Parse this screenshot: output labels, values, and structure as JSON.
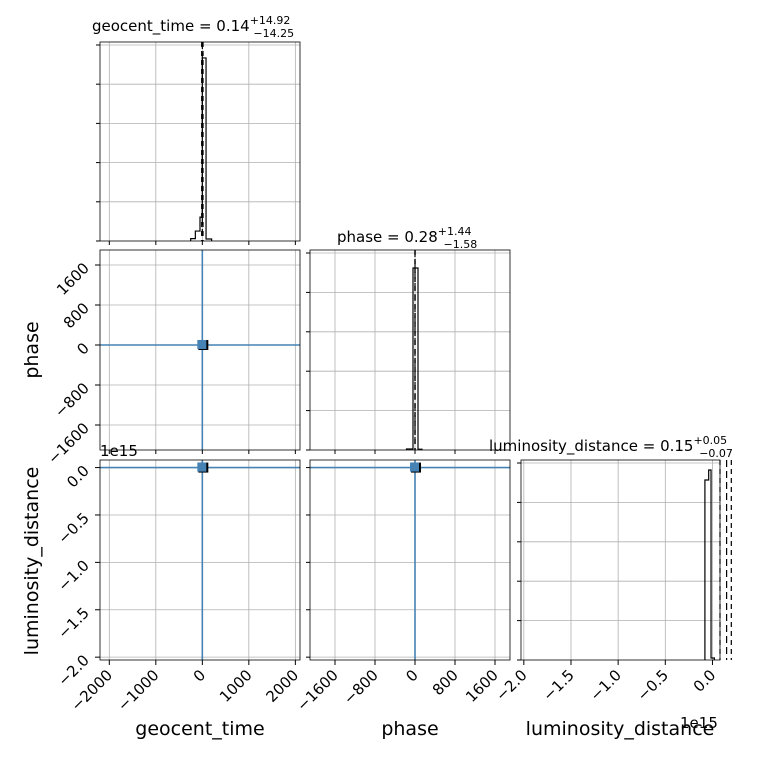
{
  "chart_data": {
    "type": "corner",
    "parameters": [
      "geocent_time",
      "phase",
      "luminosity_distance"
    ],
    "offset_labels": {
      "luminosity_distance_yaxis": "1e15",
      "luminosity_distance_xaxis": "1e15"
    },
    "ranges": {
      "geocent_time": [
        -2200,
        2100
      ],
      "phase": [
        -2100,
        1900
      ],
      "luminosity_distance": [
        -2.03,
        0.08
      ]
    },
    "ticks": {
      "geocent_time": [
        {
          "value": -2000,
          "label": "−2000"
        },
        {
          "value": -1000,
          "label": "−1000"
        },
        {
          "value": 0,
          "label": "0"
        },
        {
          "value": 1000,
          "label": "1000"
        },
        {
          "value": 2000,
          "label": "2000"
        }
      ],
      "phase": [
        {
          "value": -1600,
          "label": "−1600"
        },
        {
          "value": -800,
          "label": "−800"
        },
        {
          "value": 0,
          "label": "0"
        },
        {
          "value": 800,
          "label": "800"
        },
        {
          "value": 1600,
          "label": "1600"
        }
      ],
      "luminosity_distance_x": [
        {
          "value": -2.0,
          "label": "−2.0"
        },
        {
          "value": -1.5,
          "label": "−1.5"
        },
        {
          "value": -1.0,
          "label": "−1.0"
        },
        {
          "value": -0.5,
          "label": "−0.5"
        },
        {
          "value": 0.0,
          "label": "0.0"
        }
      ],
      "luminosity_distance_y": [
        {
          "value": 0.0,
          "label": "0.0"
        },
        {
          "value": -0.5,
          "label": "−0.5"
        },
        {
          "value": -1.0,
          "label": "−1.0"
        },
        {
          "value": -1.5,
          "label": "−1.5"
        },
        {
          "value": -2.0,
          "label": "−2.0"
        }
      ]
    },
    "titles": {
      "geocent_time": {
        "name": "geocent_time",
        "median": "0.14",
        "upper": "+14.92",
        "lower": "−14.25"
      },
      "phase": {
        "name": "phase",
        "median": "0.28",
        "upper": "+1.44",
        "lower": "−1.58"
      },
      "luminosity_distance": {
        "name": "luminosity_distance",
        "median": "0.15",
        "upper": "+0.05",
        "lower": "−0.07"
      }
    },
    "histograms": {
      "geocent_time": {
        "edges": [
          -250,
          -150,
          -50,
          0,
          80,
          200
        ],
        "heights": [
          0.012,
          0.05,
          0.12,
          0.92,
          0.01
        ],
        "median": 0.14,
        "q_lo": -14.11,
        "q_hi": 15.06
      },
      "phase": {
        "edges": [
          -170,
          -40,
          60,
          140
        ],
        "heights": [
          0.005,
          0.91,
          0.004
        ],
        "median": 0.28,
        "q_lo": -1.3,
        "q_hi": 1.72
      },
      "luminosity_distance": {
        "edges": [
          -0.08,
          -0.04,
          -0.015,
          0.02
        ],
        "heights": [
          0.9,
          0.95,
          0.01
        ],
        "median": 0.15,
        "q_lo": 0.08,
        "q_hi": 0.2
      }
    },
    "scatter_color": "#4682b4",
    "grid": true
  }
}
